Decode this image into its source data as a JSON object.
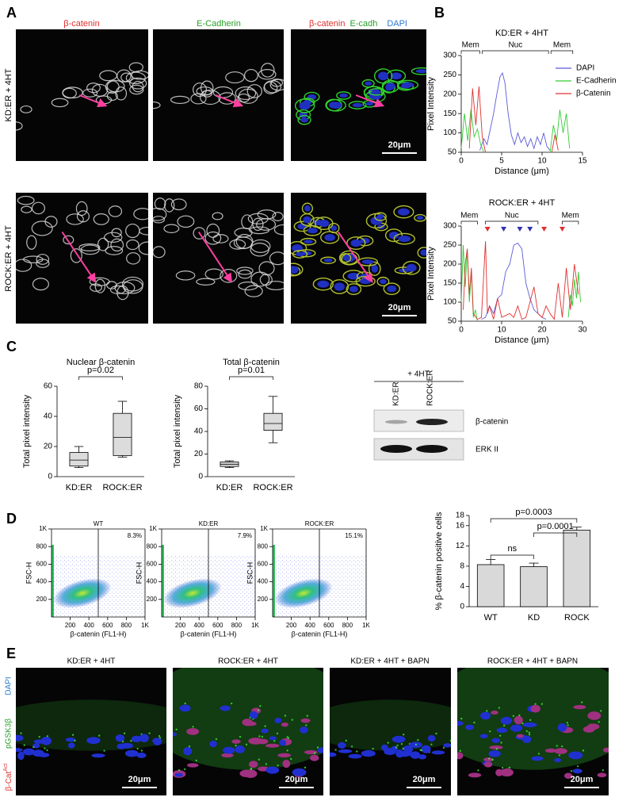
{
  "figure": {
    "panel_letters": [
      "A",
      "B",
      "C",
      "D",
      "E"
    ],
    "panel_a": {
      "column_labels": [
        "β-catenin",
        "E-Cadherin"
      ],
      "merge_labels": [
        "β-catenin",
        "E-cadh",
        "DAPI"
      ],
      "row_labels": [
        "KD:ER + 4HT",
        "ROCK:ER + 4HT"
      ],
      "scale_bar": "20μm"
    },
    "western_blot": {
      "treatment": "+ 4HT",
      "lanes": [
        "KD:ER",
        "ROCK:ER"
      ],
      "bands": [
        "β-catenin",
        "ERK II"
      ]
    },
    "panel_e": {
      "column_labels": [
        "KD:ER + 4HT",
        "ROCK:ER + 4HT",
        "KD:ER + 4HT + BAPN",
        "ROCK:ER + 4HT + BAPN"
      ],
      "channel_labels": [
        {
          "text": "DAPI"
        },
        {
          "text": "pGSK3β"
        },
        {
          "text": "β-Cat",
          "sup": "Act"
        }
      ],
      "scale_bar": "20μm"
    }
  },
  "chart_data": [
    {
      "type": "line",
      "title": "KD:ER + 4HT",
      "xlabel": "Distance (μm)",
      "ylabel": "Pixel Intensity",
      "xlim": [
        0,
        15
      ],
      "xticks": [
        0,
        5,
        10,
        15
      ],
      "ylim": [
        50,
        300
      ],
      "yticks": [
        50,
        100,
        150,
        200,
        250,
        300
      ],
      "legend": "upper right",
      "annotations": [
        "Mem",
        "Nuc",
        "Mem"
      ],
      "series": [
        {
          "name": "DAPI",
          "color": "#5b5bd6",
          "x": [
            2.3,
            2.8,
            3.2,
            3.6,
            4.0,
            4.4,
            4.8,
            5.1,
            5.4,
            5.8,
            6.2,
            6.6,
            7.0,
            7.4,
            7.8,
            8.2,
            8.6,
            9.0,
            9.4,
            9.8,
            10.2,
            10.6,
            11.0
          ],
          "values": [
            55,
            85,
            70,
            110,
            150,
            200,
            245,
            255,
            230,
            150,
            95,
            70,
            100,
            75,
            90,
            65,
            85,
            60,
            90,
            70,
            100,
            65,
            55
          ]
        },
        {
          "name": "E-Cadherin",
          "color": "#33cc33",
          "x": [
            0,
            0.4,
            0.8,
            1.2,
            1.6,
            2.0,
            2.4,
            2.8,
            null,
            11.0,
            11.4,
            11.8,
            12.2,
            12.6,
            13.0,
            13.4
          ],
          "values": [
            60,
            150,
            80,
            160,
            90,
            110,
            70,
            50,
            null,
            50,
            120,
            80,
            160,
            100,
            150,
            60
          ]
        },
        {
          "name": "β-Catenin",
          "color": "#e03030",
          "x": [
            1.0,
            1.4,
            1.8,
            2.2,
            2.6,
            3.0,
            null,
            11.2,
            11.6,
            12.0
          ],
          "values": [
            60,
            215,
            120,
            220,
            90,
            50,
            null,
            50,
            95,
            55
          ]
        }
      ]
    },
    {
      "type": "line",
      "title": "ROCK:ER + 4HT",
      "xlabel": "Distance (μm)",
      "ylabel": "Pixel Intensity",
      "xlim": [
        0,
        30
      ],
      "xticks": [
        0,
        10,
        20,
        30
      ],
      "ylim": [
        50,
        300
      ],
      "yticks": [
        50,
        100,
        150,
        200,
        250,
        300
      ],
      "annotations": [
        "Mem",
        "Nuc",
        "Mem"
      ],
      "series": [
        {
          "name": "DAPI",
          "color": "#5b5bd6",
          "x": [
            5,
            6,
            7,
            8,
            9,
            10,
            11,
            12,
            13,
            14,
            15,
            16,
            17,
            18,
            19,
            20,
            21
          ],
          "values": [
            55,
            60,
            90,
            70,
            110,
            120,
            180,
            200,
            250,
            255,
            240,
            150,
            110,
            80,
            70,
            60,
            55
          ]
        },
        {
          "name": "E-Cadherin",
          "color": "#33cc33",
          "x": [
            0,
            0.5,
            1,
            1.5,
            2,
            2.5,
            3,
            3.5,
            4,
            null,
            26.5,
            27,
            27.5,
            28,
            28.5,
            29,
            29.5
          ],
          "values": [
            100,
            250,
            140,
            240,
            100,
            180,
            60,
            80,
            50,
            null,
            60,
            120,
            90,
            160,
            110,
            180,
            100
          ]
        },
        {
          "name": "β-Catenin",
          "color": "#e03030",
          "x": [
            0.5,
            1,
            1.5,
            2,
            2.5,
            3,
            4,
            5,
            6,
            6.5,
            7,
            8,
            9,
            10,
            11,
            12,
            13,
            14,
            15,
            16,
            17,
            18,
            19,
            20,
            21,
            22,
            23,
            24,
            25,
            26,
            27,
            28,
            29
          ],
          "values": [
            80,
            200,
            240,
            120,
            190,
            70,
            55,
            60,
            260,
            70,
            90,
            55,
            110,
            60,
            65,
            70,
            60,
            90,
            55,
            60,
            100,
            140,
            70,
            60,
            90,
            70,
            55,
            150,
            60,
            190,
            80,
            200,
            120
          ]
        }
      ]
    },
    {
      "type": "box",
      "title": "Nuclear β-catenin",
      "ylabel": "Total pixel intensity",
      "categories": [
        "KD:ER",
        "ROCK:ER"
      ],
      "ylim": [
        0,
        60
      ],
      "yticks": [
        0,
        20,
        40,
        60
      ],
      "boxes": [
        {
          "min": 6,
          "q1": 7,
          "median": 11,
          "q3": 16,
          "max": 20
        },
        {
          "min": 13,
          "q1": 14,
          "median": 26,
          "q3": 42,
          "max": 50
        }
      ],
      "comparison": "p=0.02"
    },
    {
      "type": "box",
      "title": "Total β-catenin",
      "ylabel": "Total pixel intensity",
      "categories": [
        "KD:ER",
        "ROCK:ER"
      ],
      "ylim": [
        0,
        80
      ],
      "yticks": [
        0,
        20,
        40,
        60,
        80
      ],
      "boxes": [
        {
          "min": 8,
          "q1": 9,
          "median": 11,
          "q3": 13,
          "max": 14
        },
        {
          "min": 30,
          "q1": 41,
          "median": 47,
          "q3": 56,
          "max": 71
        }
      ],
      "comparison": "p=0.01"
    },
    {
      "type": "density",
      "title": "WT",
      "annotation": "8.3%",
      "xlabel": "β-catenin (FL1-H)",
      "ylabel": "FSC-H",
      "xlim": [
        0,
        1000
      ],
      "xticks": [
        200,
        400,
        600,
        800,
        {
          "value": 1000,
          "label": "1K"
        }
      ],
      "ylim": [
        0,
        1000
      ],
      "yticks": [
        200,
        400,
        600,
        800,
        {
          "value": 1000,
          "label": "1K"
        }
      ],
      "gate": 500
    },
    {
      "type": "density",
      "title": "KD:ER",
      "annotation": "7.9%",
      "xlabel": "β-catenin (FL1-H)",
      "ylabel": "FSC-H",
      "xlim": [
        0,
        1000
      ],
      "xticks": [
        200,
        400,
        600,
        800,
        {
          "value": 1000,
          "label": "1K"
        }
      ],
      "ylim": [
        0,
        1000
      ],
      "yticks": [
        200,
        400,
        600,
        800,
        {
          "value": 1000,
          "label": "1K"
        }
      ],
      "gate": 500
    },
    {
      "type": "density",
      "title": "ROCK:ER",
      "annotation": "15.1%",
      "xlabel": "β-catenin (FL1-H)",
      "ylabel": "FSC-H",
      "xlim": [
        0,
        1000
      ],
      "xticks": [
        200,
        400,
        600,
        800,
        {
          "value": 1000,
          "label": "1K"
        }
      ],
      "ylim": [
        0,
        1000
      ],
      "yticks": [
        200,
        400,
        600,
        800,
        {
          "value": 1000,
          "label": "1K"
        }
      ],
      "gate": 500
    },
    {
      "type": "bar",
      "ylabel": "% β-catenin positive cells",
      "categories": [
        "WT",
        "KD",
        "ROCK"
      ],
      "values": [
        8.3,
        7.9,
        15.1
      ],
      "errors": [
        1.0,
        0.7,
        0.6
      ],
      "color": "#d9d9d9",
      "ylim": [
        0,
        18
      ],
      "yticks": [
        0,
        4,
        8,
        12,
        16,
        18
      ],
      "comparisons": [
        "ns",
        "p=0.0001",
        "p=0.0003"
      ]
    }
  ]
}
